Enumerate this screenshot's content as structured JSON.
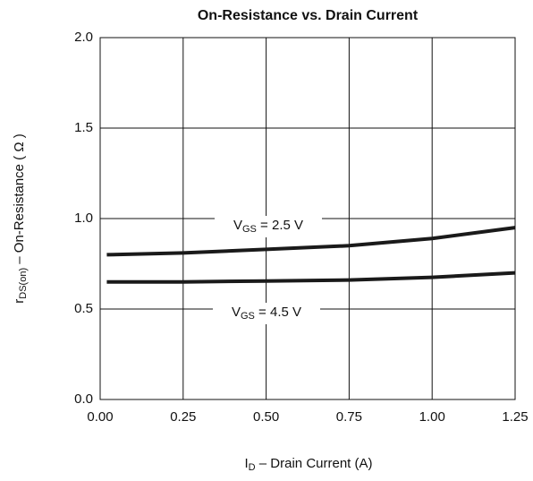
{
  "chart_data": {
    "type": "line",
    "title": "On-Resistance vs. Drain Current",
    "xlabel": {
      "main": "I",
      "sub": "D",
      "rest": "  –  Drain Current (A)"
    },
    "ylabel": {
      "main": "r",
      "sub": "DS(on)",
      "rest": "  –  On-Resistance ( Ω )"
    },
    "x": [
      0.02,
      0.25,
      0.5,
      0.75,
      1.0,
      1.25
    ],
    "series": [
      {
        "name": "VGS = 2.5 V",
        "color": "#1a1a1a",
        "values": [
          0.8,
          0.81,
          0.83,
          0.85,
          0.89,
          0.95
        ]
      },
      {
        "name": "VGS = 4.5 V",
        "color": "#1a1a1a",
        "values": [
          0.65,
          0.65,
          0.655,
          0.66,
          0.675,
          0.7
        ]
      }
    ],
    "annotations": [
      {
        "main": "V",
        "sub": "GS",
        "rest": " = 2.5 V"
      },
      {
        "main": "V",
        "sub": "GS",
        "rest": " = 4.5 V"
      }
    ],
    "xlim": [
      0,
      1.25
    ],
    "ylim": [
      0,
      2.0
    ],
    "xticks": [
      {
        "value": 0,
        "label": "0.00"
      },
      {
        "value": 0.25,
        "label": "0.25"
      },
      {
        "value": 0.5,
        "label": "0.50"
      },
      {
        "value": 0.75,
        "label": "0.75"
      },
      {
        "value": 1.0,
        "label": "1.00"
      },
      {
        "value": 1.25,
        "label": "1.25"
      }
    ],
    "yticks": [
      {
        "value": 0,
        "label": "0.0"
      },
      {
        "value": 0.5,
        "label": "0.5"
      },
      {
        "value": 1.0,
        "label": "1.0"
      },
      {
        "value": 1.5,
        "label": "1.5"
      },
      {
        "value": 2.0,
        "label": "2.0"
      }
    ],
    "grid": true
  }
}
